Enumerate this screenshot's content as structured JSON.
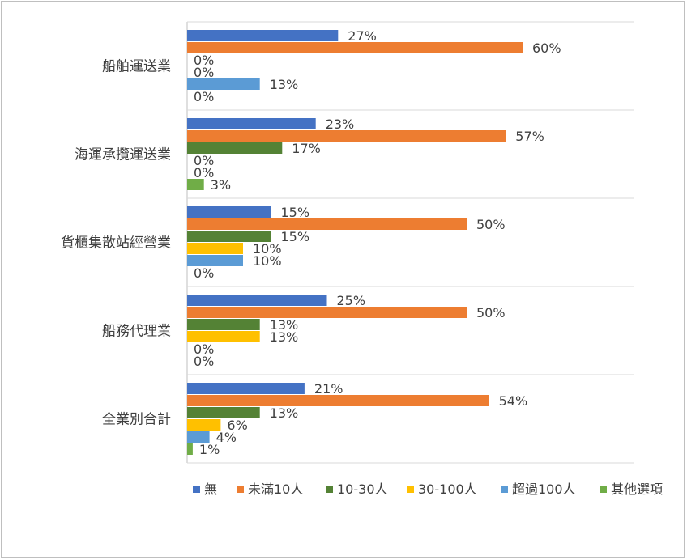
{
  "chart_data": {
    "type": "bar",
    "orientation": "horizontal",
    "categories": [
      "船舶運送業",
      "海運承攬運送業",
      "貨櫃集散站經營業",
      "船務代理業",
      "全業別合計"
    ],
    "series": [
      {
        "name": "無",
        "color": "#4472c4",
        "values": [
          27,
          23,
          15,
          25,
          21
        ],
        "labels": [
          "27%",
          "23%",
          "15%",
          "25%",
          "21%"
        ]
      },
      {
        "name": "未滿10人",
        "color": "#ed7d31",
        "values": [
          60,
          57,
          50,
          50,
          54
        ],
        "labels": [
          "60%",
          "57%",
          "50%",
          "50%",
          "54%"
        ]
      },
      {
        "name": "10-30人",
        "color": "#548235",
        "values": [
          0,
          17,
          15,
          13,
          13
        ],
        "labels": [
          "0%",
          "17%",
          "15%",
          "13%",
          "13%"
        ]
      },
      {
        "name": "30-100人",
        "color": "#ffc000",
        "values": [
          0,
          0,
          10,
          13,
          6
        ],
        "labels": [
          "0%",
          "0%",
          "10%",
          "13%",
          "6%"
        ]
      },
      {
        "name": "超過100人",
        "color": "#5b9bd5",
        "values": [
          13,
          0,
          10,
          0,
          4
        ],
        "labels": [
          "13%",
          "0%",
          "10%",
          "0%",
          "4%"
        ]
      },
      {
        "name": "其他選項",
        "color": "#70ad47",
        "values": [
          0,
          3,
          0,
          0,
          1
        ],
        "labels": [
          "0%",
          "3%",
          "0%",
          "0%",
          "1%"
        ]
      }
    ],
    "xlim": [
      0,
      90
    ],
    "grid": true,
    "legend_position": "bottom"
  }
}
